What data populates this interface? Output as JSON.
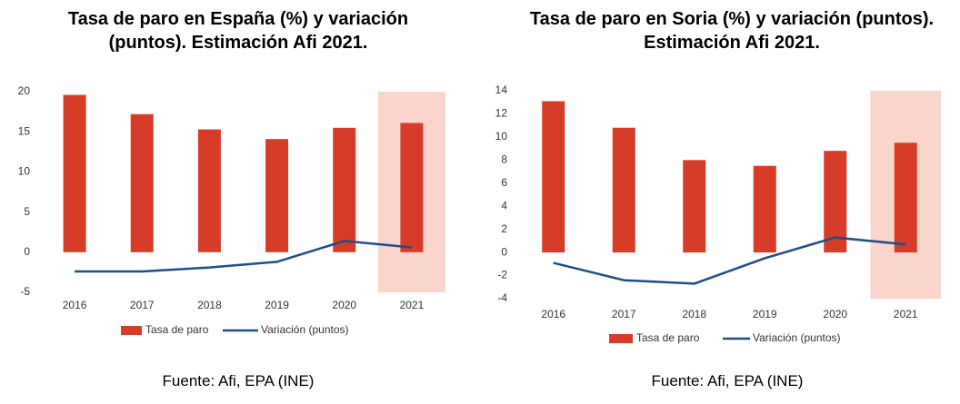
{
  "chart_data": [
    {
      "type": "bar",
      "title": "Tasa de paro en España (%) y variación (puntos). Estimación Afi 2021.",
      "categories": [
        "2016",
        "2017",
        "2018",
        "2019",
        "2020",
        "2021"
      ],
      "series": [
        {
          "name": "Tasa de paro",
          "type": "bar",
          "color": "#d63c27",
          "values": [
            19.6,
            17.2,
            15.3,
            14.1,
            15.5,
            16.1
          ]
        },
        {
          "name": "Variación (puntos)",
          "type": "line",
          "color": "#1f4e86",
          "values": [
            -2.4,
            -2.4,
            -1.9,
            -1.2,
            1.4,
            0.6
          ]
        }
      ],
      "ylim": [
        -5,
        20
      ],
      "yticks": [
        -5,
        0,
        5,
        10,
        15,
        20
      ],
      "grid": false,
      "highlight_index": 5,
      "highlight_color": "#f9d5cc",
      "source": "Fuente: Afi, EPA (INE)"
    },
    {
      "type": "bar",
      "title": "Tasa de paro en Soria (%) y variación (puntos). Estimación Afi 2021.",
      "categories": [
        "2016",
        "2017",
        "2018",
        "2019",
        "2020",
        "2021"
      ],
      "series": [
        {
          "name": "Tasa de paro",
          "type": "bar",
          "color": "#d63c27",
          "values": [
            13.1,
            10.8,
            8.0,
            7.5,
            8.8,
            9.5
          ]
        },
        {
          "name": "Variación (puntos)",
          "type": "line",
          "color": "#1f4e86",
          "values": [
            -0.9,
            -2.4,
            -2.7,
            -0.5,
            1.3,
            0.7
          ]
        }
      ],
      "ylim": [
        -4,
        14
      ],
      "yticks": [
        -4,
        -2,
        0,
        2,
        4,
        6,
        8,
        10,
        12,
        14
      ],
      "grid": false,
      "highlight_index": 5,
      "highlight_color": "#f9d5cc",
      "source": "Fuente: Afi, EPA (INE)"
    }
  ]
}
